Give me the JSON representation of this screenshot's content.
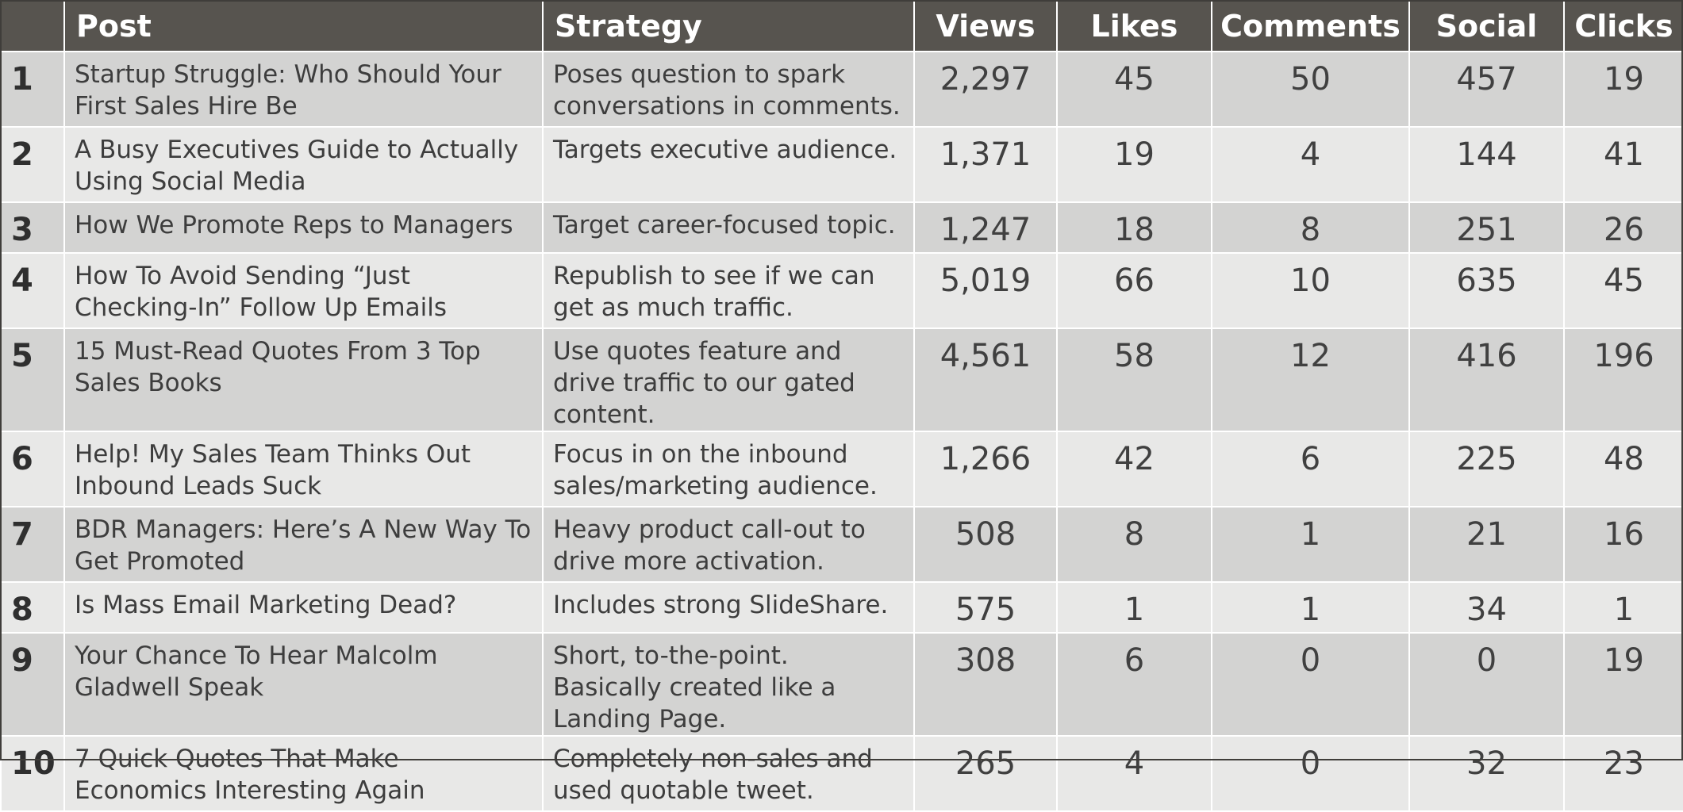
{
  "headers": {
    "rank": "",
    "post": "Post",
    "strategy": "Strategy",
    "views": "Views",
    "likes": "Likes",
    "comments": "Comments",
    "social": "Social",
    "clicks": "Clicks"
  },
  "rows": [
    {
      "rank": "1",
      "post": "Startup Struggle: Who Should Your First Sales Hire Be",
      "strategy": "Poses question to spark conversations in comments.",
      "views": "2,297",
      "likes": "45",
      "comments": "50",
      "social": "457",
      "clicks": "19"
    },
    {
      "rank": "2",
      "post": "A Busy Executives Guide to Actually Using Social Media",
      "strategy": "Targets executive audience.",
      "views": "1,371",
      "likes": "19",
      "comments": "4",
      "social": "144",
      "clicks": "41"
    },
    {
      "rank": "3",
      "post": "How We Promote Reps to Managers",
      "strategy": "Target career-focused topic.",
      "views": "1,247",
      "likes": "18",
      "comments": "8",
      "social": "251",
      "clicks": "26"
    },
    {
      "rank": "4",
      "post": "How To Avoid Sending “Just Checking-In” Follow Up Emails",
      "strategy": "Republish to see if we can get as much traffic.",
      "views": "5,019",
      "likes": "66",
      "comments": "10",
      "social": "635",
      "clicks": "45"
    },
    {
      "rank": "5",
      "post": "15 Must-Read Quotes From 3 Top Sales Books",
      "strategy": "Use quotes feature and drive traffic to our gated content.",
      "views": "4,561",
      "likes": "58",
      "comments": "12",
      "social": "416",
      "clicks": "196"
    },
    {
      "rank": "6",
      "post": "Help! My Sales Team Thinks Out Inbound Leads Suck",
      "strategy": "Focus in on the inbound sales/marketing audience.",
      "views": "1,266",
      "likes": "42",
      "comments": "6",
      "social": "225",
      "clicks": "48"
    },
    {
      "rank": "7",
      "post": "BDR Managers: Here’s A New Way To Get Promoted",
      "strategy": "Heavy product call-out to drive more activation.",
      "views": "508",
      "likes": "8",
      "comments": "1",
      "social": "21",
      "clicks": "16"
    },
    {
      "rank": "8",
      "post": "Is Mass Email Marketing Dead?",
      "strategy": "Includes strong SlideShare.",
      "views": "575",
      "likes": "1",
      "comments": "1",
      "social": "34",
      "clicks": "1"
    },
    {
      "rank": "9",
      "post": "Your Chance To Hear Malcolm Gladwell Speak",
      "strategy": "Short, to-the-point. Basically created like a Landing Page.",
      "views": "308",
      "likes": "6",
      "comments": "0",
      "social": "0",
      "clicks": "19"
    },
    {
      "rank": "10",
      "post": "7 Quick Quotes That Make Economics Interesting Again",
      "strategy": "Completely non-sales and used quotable tweet.",
      "views": "265",
      "likes": "4",
      "comments": "0",
      "social": "32",
      "clicks": "23"
    }
  ],
  "colors": {
    "header_bg": "#57544f",
    "header_text": "#ffffff",
    "row_dark": "#d3d3d2",
    "row_light": "#e8e8e7",
    "grid_line": "#ffffff"
  }
}
